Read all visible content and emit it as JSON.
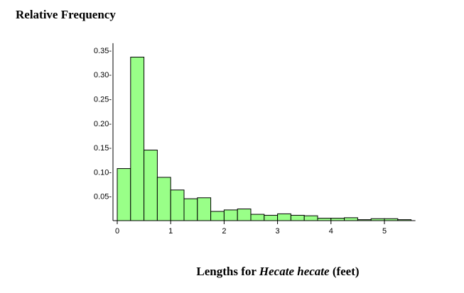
{
  "chart_data": {
    "type": "bar",
    "title": "Relative Frequency",
    "xlabel": {
      "prefix": "Lengths for ",
      "italic": "Hecate hecate",
      "suffix": " (feet)"
    },
    "bin_width": 0.25,
    "bin_start": 0,
    "values": [
      0.107,
      0.336,
      0.145,
      0.089,
      0.063,
      0.045,
      0.047,
      0.019,
      0.022,
      0.024,
      0.013,
      0.011,
      0.014,
      0.011,
      0.01,
      0.005,
      0.005,
      0.006,
      0.002,
      0.004,
      0.004,
      0.002
    ],
    "xlim": [
      0,
      5.5
    ],
    "ylim": [
      0,
      0.35
    ],
    "x_ticks": [
      0,
      1,
      2,
      3,
      4,
      5
    ],
    "y_ticks": [
      0.05,
      0.1,
      0.15,
      0.2,
      0.25,
      0.3,
      0.35
    ],
    "y_tick_labels": [
      "0.05-",
      "0.10-",
      "0.15-",
      "0.20-",
      "0.25-",
      "0.30-",
      "0.35-"
    ],
    "x_tick_labels": [
      "0",
      "1",
      "2",
      "3",
      "4",
      "5"
    ],
    "bar_color": "#99ff88",
    "bar_edge_color": "#000000",
    "grid": false
  }
}
